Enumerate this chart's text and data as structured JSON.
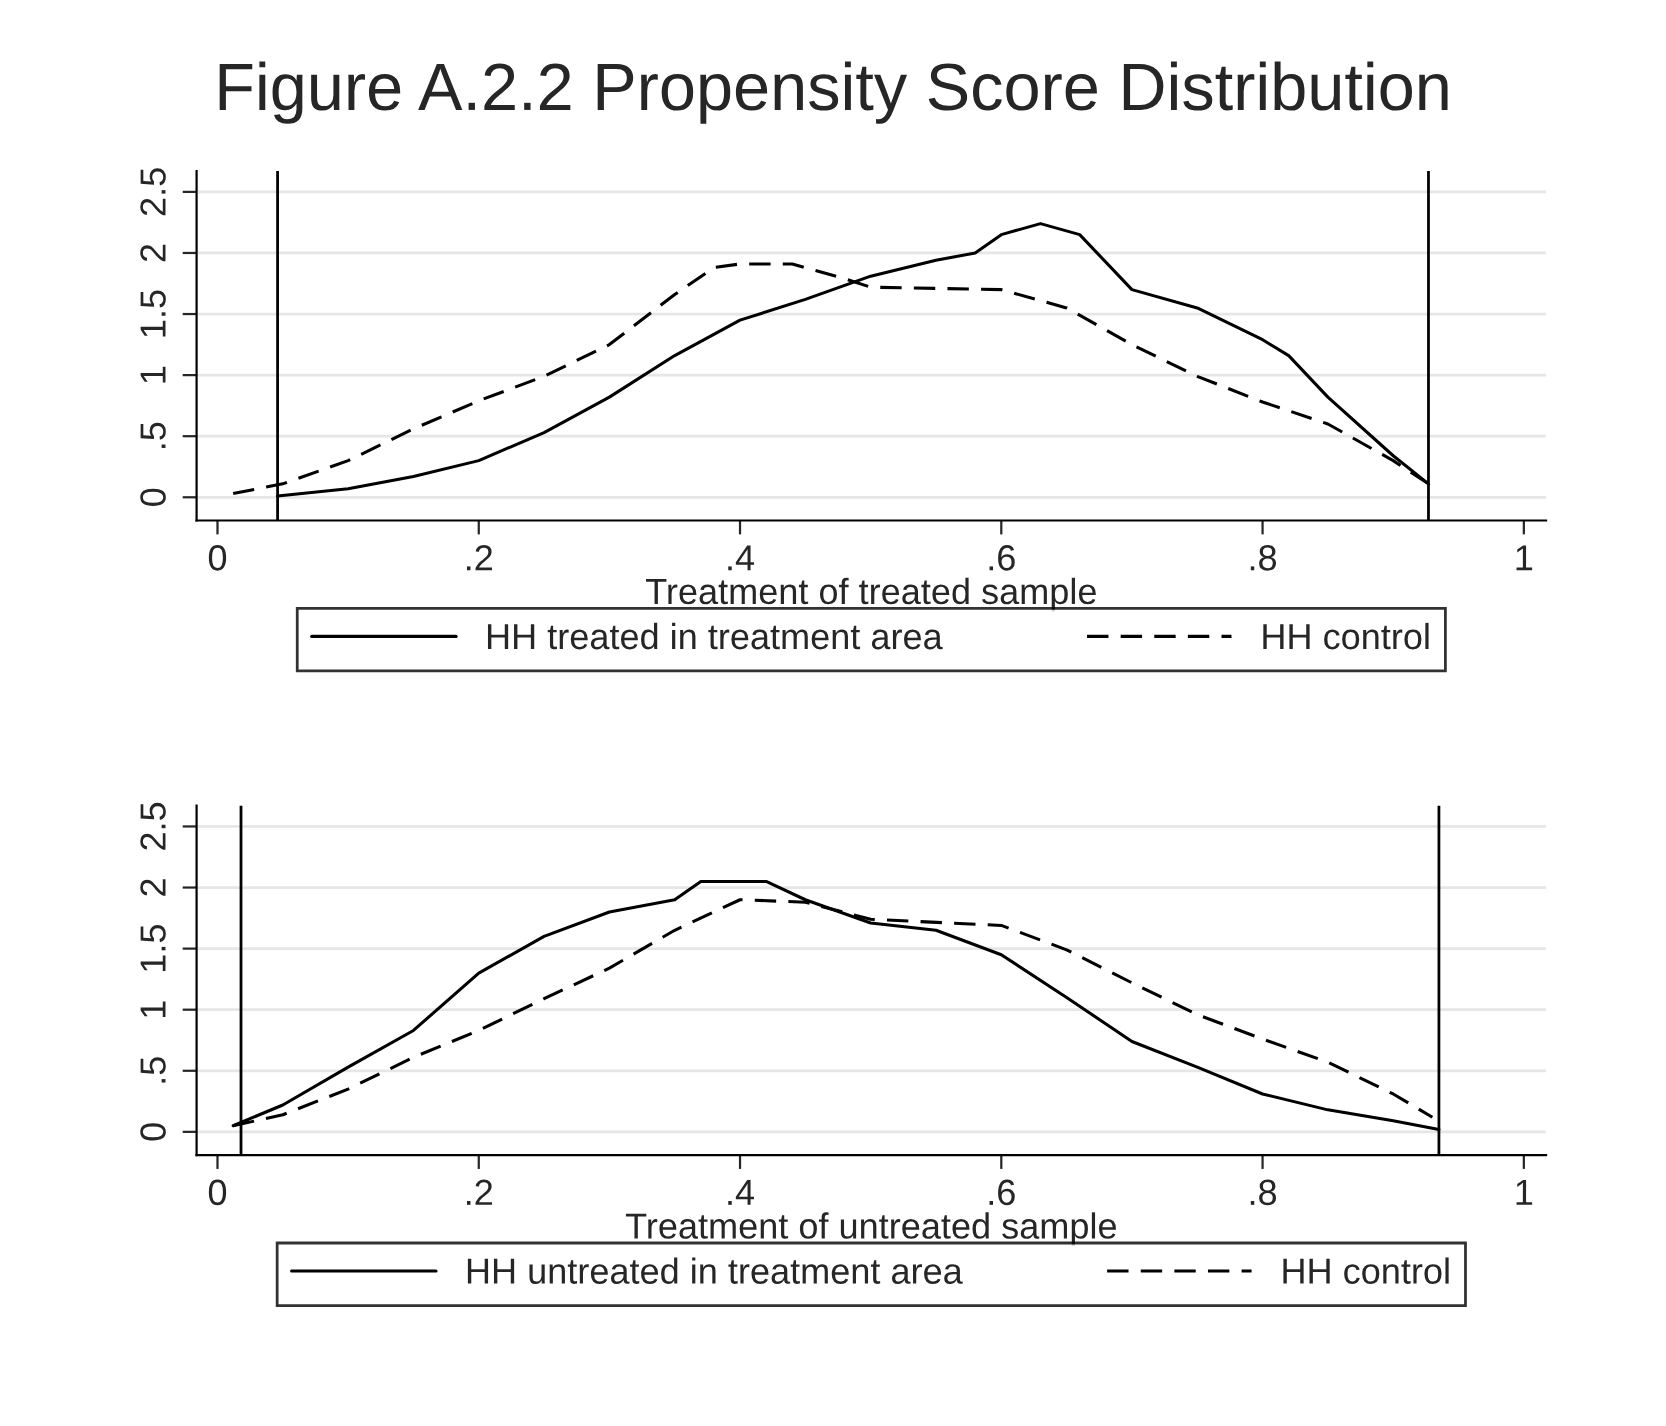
{
  "chart_data": [
    {
      "type": "line",
      "title": "Figure A.2.2 Propensity Score Distribution",
      "xlabel": "Treatment of treated sample",
      "legend": "bottom",
      "grid": "y",
      "xlim": [
        -0.016,
        1.017
      ],
      "ylim": [
        -0.19,
        2.67
      ],
      "xticks": [
        0,
        {
          "value": 0.2,
          "label": ".2"
        },
        {
          "value": 0.4,
          "label": ".4"
        },
        {
          "value": 0.6,
          "label": ".6"
        },
        {
          "value": 0.8,
          "label": ".8"
        },
        1
      ],
      "yticks": [
        0,
        {
          "value": 0.5,
          "label": ".5"
        },
        1,
        1.5,
        2,
        2.5
      ],
      "ref_lines": [
        {
          "axis": "x",
          "value": 0.046,
          "color": "#000000"
        },
        {
          "axis": "x",
          "value": 0.927,
          "color": "#000000"
        }
      ],
      "series": [
        {
          "name": "HH treated in treatment area",
          "color": "#000000",
          "line_style": "solid",
          "x": [
            0.046,
            0.1,
            0.15,
            0.2,
            0.25,
            0.3,
            0.35,
            0.4,
            0.45,
            0.5,
            0.55,
            0.58,
            0.6,
            0.63,
            0.66,
            0.7,
            0.75,
            0.8,
            0.82,
            0.85,
            0.9,
            0.927
          ],
          "values": [
            0.01,
            0.07,
            0.17,
            0.3,
            0.53,
            0.82,
            1.16,
            1.45,
            1.62,
            1.81,
            1.94,
            2.0,
            2.15,
            2.24,
            2.15,
            1.7,
            1.55,
            1.29,
            1.16,
            0.82,
            0.34,
            0.11
          ]
        },
        {
          "name": "HH control",
          "color": "#000000",
          "line_style": "dashed",
          "x": [
            0.012,
            0.05,
            0.1,
            0.15,
            0.2,
            0.25,
            0.3,
            0.35,
            0.38,
            0.4,
            0.44,
            0.48,
            0.5,
            0.6,
            0.65,
            0.7,
            0.75,
            0.8,
            0.85,
            0.9,
            0.927
          ],
          "values": [
            0.03,
            0.11,
            0.3,
            0.56,
            0.79,
            0.99,
            1.25,
            1.66,
            1.88,
            1.91,
            1.91,
            1.79,
            1.72,
            1.7,
            1.55,
            1.25,
            0.99,
            0.78,
            0.6,
            0.3,
            0.11
          ]
        }
      ]
    },
    {
      "type": "line",
      "xlabel": "Treatment of untreated sample",
      "legend": "bottom",
      "grid": "y",
      "xlim": [
        -0.016,
        1.017
      ],
      "ylim": [
        -0.19,
        2.67
      ],
      "xticks": [
        0,
        {
          "value": 0.2,
          "label": ".2"
        },
        {
          "value": 0.4,
          "label": ".4"
        },
        {
          "value": 0.6,
          "label": ".6"
        },
        {
          "value": 0.8,
          "label": ".8"
        },
        1
      ],
      "yticks": [
        0,
        {
          "value": 0.5,
          "label": ".5"
        },
        1,
        1.5,
        2,
        2.5
      ],
      "ref_lines": [
        {
          "axis": "x",
          "value": 0.018,
          "color": "#000000"
        },
        {
          "axis": "x",
          "value": 0.935,
          "color": "#000000"
        }
      ],
      "series": [
        {
          "name": "HH untreated in treatment area",
          "color": "#000000",
          "line_style": "solid",
          "x": [
            0.012,
            0.05,
            0.1,
            0.15,
            0.2,
            0.25,
            0.3,
            0.35,
            0.37,
            0.42,
            0.45,
            0.5,
            0.55,
            0.6,
            0.65,
            0.7,
            0.75,
            0.8,
            0.85,
            0.9,
            0.935
          ],
          "values": [
            0.05,
            0.22,
            0.53,
            0.83,
            1.3,
            1.6,
            1.8,
            1.9,
            2.05,
            2.05,
            1.9,
            1.71,
            1.65,
            1.45,
            1.1,
            0.74,
            0.53,
            0.31,
            0.18,
            0.09,
            0.02
          ]
        },
        {
          "name": "HH control",
          "color": "#000000",
          "line_style": "dashed",
          "x": [
            0.012,
            0.05,
            0.1,
            0.15,
            0.2,
            0.25,
            0.3,
            0.35,
            0.4,
            0.45,
            0.5,
            0.6,
            0.65,
            0.7,
            0.75,
            0.8,
            0.85,
            0.9,
            0.93
          ],
          "values": [
            0.05,
            0.14,
            0.35,
            0.61,
            0.83,
            1.09,
            1.34,
            1.65,
            1.9,
            1.88,
            1.74,
            1.69,
            1.49,
            1.22,
            0.96,
            0.76,
            0.57,
            0.31,
            0.12
          ]
        }
      ]
    }
  ]
}
